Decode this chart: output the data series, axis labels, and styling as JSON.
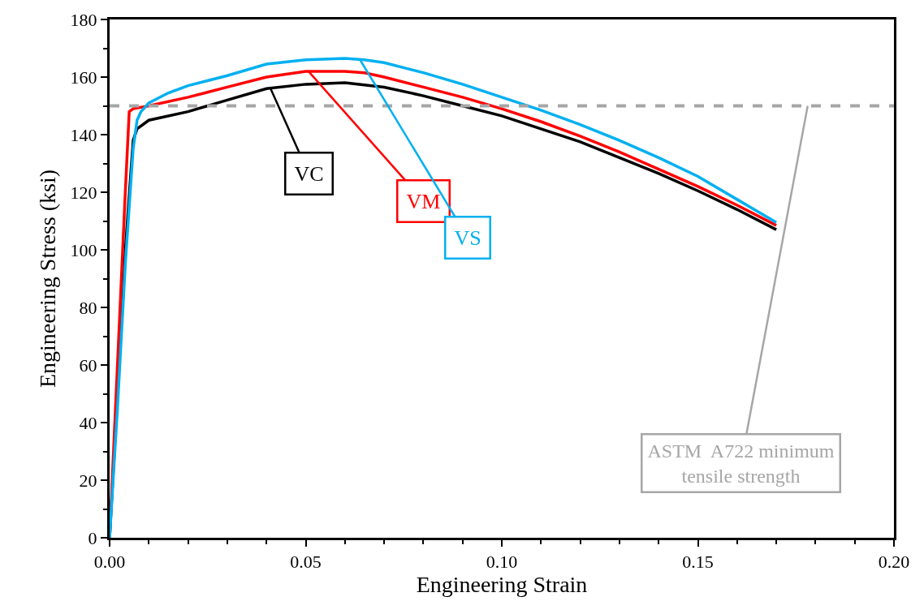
{
  "chart_data": {
    "type": "line",
    "xlabel": "Engineering Strain",
    "ylabel": "Engineering Stress (ksi)",
    "xlim": [
      0,
      0.2
    ],
    "xticks": [
      {
        "value": 0,
        "label": "0.00"
      },
      {
        "value": 0.05,
        "label": "0.05"
      },
      {
        "value": 0.1,
        "label": "0.10"
      },
      {
        "value": 0.15,
        "label": "0.15"
      },
      {
        "value": 0.2,
        "label": "0.20"
      }
    ],
    "ylim": [
      0,
      180
    ],
    "yticks": [
      0,
      20,
      40,
      60,
      80,
      100,
      120,
      140,
      160,
      180
    ],
    "legend": false,
    "marker": "none",
    "line_style": "solid",
    "series": [
      {
        "name": "VC",
        "color": "#000000",
        "x": [
          0,
          0.004,
          0.006,
          0.007,
          0.01,
          0.02,
          0.03,
          0.04,
          0.05,
          0.06,
          0.07,
          0.08,
          0.09,
          0.1,
          0.11,
          0.12,
          0.13,
          0.14,
          0.15,
          0.16,
          0.17
        ],
        "values": [
          0,
          100,
          138,
          142,
          145,
          148,
          152,
          156,
          157.5,
          158,
          156.5,
          153.5,
          150,
          146.5,
          142,
          137.5,
          132,
          126.5,
          120.5,
          114,
          107
        ]
      },
      {
        "name": "VM",
        "color": "#ff0000",
        "x": [
          0,
          0.002,
          0.004,
          0.005,
          0.006,
          0.01,
          0.02,
          0.03,
          0.04,
          0.05,
          0.06,
          0.065,
          0.07,
          0.08,
          0.09,
          0.1,
          0.11,
          0.12,
          0.13,
          0.14,
          0.15,
          0.16,
          0.17
        ],
        "values": [
          0,
          60,
          120,
          148,
          149,
          150,
          153,
          156.5,
          160,
          162,
          162,
          161.5,
          160,
          156.5,
          153,
          149,
          144.5,
          139.5,
          134,
          128,
          122,
          115.5,
          108.5
        ]
      },
      {
        "name": "VS",
        "color": "#00b0f0",
        "x": [
          0,
          0.002,
          0.004,
          0.006,
          0.007,
          0.008,
          0.01,
          0.015,
          0.02,
          0.03,
          0.04,
          0.05,
          0.06,
          0.065,
          0.07,
          0.08,
          0.09,
          0.1,
          0.11,
          0.12,
          0.13,
          0.14,
          0.15,
          0.16,
          0.17
        ],
        "values": [
          0,
          45,
          95,
          135,
          145,
          148,
          151,
          154.5,
          157,
          160.5,
          164.5,
          166,
          166.5,
          166,
          165,
          161.5,
          157.5,
          153,
          148.5,
          143.5,
          138,
          132,
          125.5,
          117.5,
          109.5
        ]
      }
    ],
    "ref_lines": [
      {
        "axis": "y",
        "value": 150,
        "label": "ASTM  A722 minimum\ntensile strength",
        "color": "#a6a6a6",
        "line_style": "dashed"
      }
    ]
  }
}
